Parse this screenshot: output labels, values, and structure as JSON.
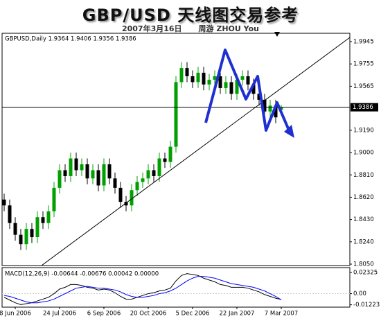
{
  "chart_data": {
    "type": "candlestick",
    "title": "GBP/USD 天线图交易参考",
    "subtitle": [
      "2007年3月16日",
      "周游 ZHOU You"
    ],
    "header": "GBPUSD,Daily 1.9364 1.9406 1.9356 1.9386",
    "categories": [
      null,
      null,
      "8 Jun 2006",
      null,
      null,
      null,
      null,
      null,
      null,
      null,
      "24 Jul 2006",
      null,
      null,
      null,
      null,
      null,
      null,
      null,
      "6 Sep 2006",
      null,
      null,
      null,
      null,
      null,
      null,
      null,
      "20 Oct 2006",
      null,
      null,
      null,
      null,
      null,
      null,
      null,
      "5 Dec 2006",
      null,
      null,
      null,
      null,
      null,
      null,
      null,
      "22 Jan 2007",
      null,
      null,
      null,
      null,
      null,
      null,
      null,
      "7 Mar 2007"
    ],
    "open": [
      1.86,
      1.855,
      1.84,
      1.83,
      1.822,
      1.835,
      1.828,
      1.845,
      1.84,
      1.85,
      1.87,
      1.885,
      1.88,
      1.895,
      1.885,
      1.89,
      1.878,
      1.885,
      1.872,
      1.89,
      1.878,
      1.87,
      1.858,
      1.855,
      1.868,
      1.875,
      1.878,
      1.885,
      1.88,
      1.895,
      1.892,
      1.905,
      1.96,
      1.972,
      1.965,
      1.96,
      1.968,
      1.958,
      1.962,
      1.965,
      1.955,
      1.96,
      1.95,
      1.962,
      1.965,
      1.958,
      1.95,
      1.945,
      1.935,
      1.94,
      1.9364
    ],
    "high": [
      1.865,
      1.86,
      1.845,
      1.835,
      1.84,
      1.84,
      1.85,
      1.85,
      1.855,
      1.875,
      1.89,
      1.89,
      1.9,
      1.9,
      1.895,
      1.895,
      1.89,
      1.89,
      1.895,
      1.895,
      1.883,
      1.875,
      1.863,
      1.873,
      1.88,
      1.883,
      1.89,
      1.89,
      1.9,
      1.9,
      1.91,
      1.965,
      1.977,
      1.977,
      1.97,
      1.973,
      1.973,
      1.967,
      1.97,
      1.97,
      1.965,
      1.965,
      1.967,
      1.97,
      1.97,
      1.963,
      1.955,
      1.95,
      1.945,
      1.945,
      1.9406
    ],
    "low": [
      1.85,
      1.835,
      1.825,
      1.817,
      1.817,
      1.823,
      1.823,
      1.835,
      1.835,
      1.845,
      1.865,
      1.875,
      1.875,
      1.88,
      1.88,
      1.873,
      1.873,
      1.867,
      1.867,
      1.873,
      1.865,
      1.853,
      1.85,
      1.85,
      1.863,
      1.87,
      1.873,
      1.875,
      1.875,
      1.887,
      1.887,
      1.9,
      1.955,
      1.96,
      1.955,
      1.955,
      1.953,
      1.953,
      1.957,
      1.95,
      1.95,
      1.945,
      1.945,
      1.957,
      1.953,
      1.945,
      1.94,
      1.93,
      1.93,
      1.925,
      1.9356
    ],
    "close": [
      1.855,
      1.84,
      1.83,
      1.822,
      1.835,
      1.828,
      1.845,
      1.84,
      1.85,
      1.87,
      1.885,
      1.88,
      1.895,
      1.885,
      1.89,
      1.878,
      1.885,
      1.872,
      1.89,
      1.878,
      1.87,
      1.858,
      1.855,
      1.868,
      1.875,
      1.878,
      1.885,
      1.88,
      1.895,
      1.892,
      1.905,
      1.96,
      1.972,
      1.965,
      1.96,
      1.968,
      1.958,
      1.962,
      1.965,
      1.955,
      1.96,
      1.95,
      1.962,
      1.965,
      1.958,
      1.95,
      1.945,
      1.935,
      1.94,
      1.93,
      1.9386
    ],
    "up_color": "#00a000",
    "down_color": "#000000",
    "ylim": [
      1.8038,
      2.0016
    ],
    "yticks": [
      {
        "value": 1.805,
        "label": "1.8050"
      },
      {
        "value": 1.824,
        "label": "1.8240"
      },
      {
        "value": 1.843,
        "label": "1.8430"
      },
      {
        "value": 1.862,
        "label": "1.8620"
      },
      {
        "value": 1.881,
        "label": "1.8810"
      },
      {
        "value": 1.9,
        "label": "1.9000"
      },
      {
        "value": 1.919,
        "label": "1.9190"
      },
      1.9565,
      1.9755,
      1.9945
    ],
    "current_price": 1.9386,
    "macd": {
      "header": "MACD(12,26,9) -0.00644 -0.00676 0.00042 0.00000",
      "series": [
        {
          "color": "#000000",
          "values": [
            -0.004,
            -0.007,
            -0.01,
            -0.012,
            -0.011,
            -0.01,
            -0.008,
            -0.006,
            -0.004,
            0.0,
            0.005,
            0.007,
            0.01,
            0.01,
            0.009,
            0.007,
            0.006,
            0.004,
            0.005,
            0.004,
            0.001,
            -0.003,
            -0.006,
            -0.006,
            -0.004,
            -0.002,
            0.0,
            0.001,
            0.003,
            0.004,
            0.006,
            0.014,
            0.02,
            0.022,
            0.021,
            0.02,
            0.017,
            0.015,
            0.013,
            0.01,
            0.009,
            0.007,
            0.007,
            0.007,
            0.006,
            0.004,
            0.002,
            -0.001,
            -0.003,
            -0.005,
            -0.00644
          ]
        },
        {
          "color": "#0000ff",
          "values": [
            -0.002,
            -0.003,
            -0.005,
            -0.007,
            -0.009,
            -0.01,
            -0.01,
            -0.009,
            -0.008,
            -0.006,
            -0.003,
            0.0,
            0.003,
            0.006,
            0.007,
            0.008,
            0.007,
            0.006,
            0.006,
            0.005,
            0.004,
            0.002,
            -0.001,
            -0.003,
            -0.004,
            -0.004,
            -0.003,
            -0.002,
            0.0,
            0.001,
            0.003,
            0.006,
            0.01,
            0.014,
            0.017,
            0.019,
            0.019,
            0.018,
            0.017,
            0.015,
            0.013,
            0.011,
            0.01,
            0.009,
            0.008,
            0.007,
            0.005,
            0.003,
            0.0,
            -0.003,
            -0.00676
          ]
        }
      ],
      "ylim": [
        -0.0148,
        0.0286
      ],
      "yticks": [
        -0.01223,
        {
          "value": 0,
          "label": "0.00"
        },
        0.02325
      ]
    }
  }
}
